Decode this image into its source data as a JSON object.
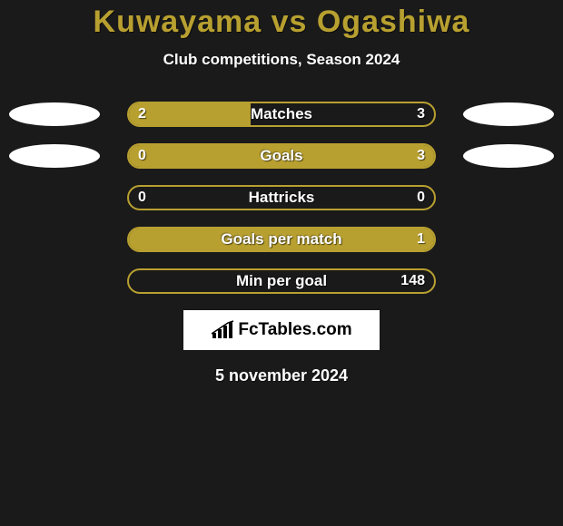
{
  "title": "Kuwayama vs Ogashiwa",
  "subtitle": "Club competitions, Season 2024",
  "date": "5 november 2024",
  "logo_text": "FcTables.com",
  "colors": {
    "accent": "#b8a030",
    "background": "#1a1a1a",
    "text": "#ffffff",
    "logo_bg": "#ffffff"
  },
  "rows": [
    {
      "label": "Matches",
      "left_val": "2",
      "right_val": "3",
      "left_fill_pct": 40,
      "right_fill_pct": 0,
      "show_avatars": true
    },
    {
      "label": "Goals",
      "left_val": "0",
      "right_val": "3",
      "left_fill_pct": 0,
      "right_fill_pct": 100,
      "show_avatars": true
    },
    {
      "label": "Hattricks",
      "left_val": "0",
      "right_val": "0",
      "left_fill_pct": 0,
      "right_fill_pct": 0,
      "show_avatars": false
    },
    {
      "label": "Goals per match",
      "left_val": "",
      "right_val": "1",
      "left_fill_pct": 0,
      "right_fill_pct": 100,
      "show_avatars": false
    },
    {
      "label": "Min per goal",
      "left_val": "",
      "right_val": "148",
      "left_fill_pct": 0,
      "right_fill_pct": 0,
      "show_avatars": false
    }
  ]
}
